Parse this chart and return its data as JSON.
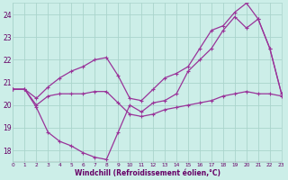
{
  "background_color": "#cceee8",
  "grid_color": "#aad4cc",
  "line_color": "#993399",
  "xlim": [
    0,
    23
  ],
  "ylim": [
    17.5,
    24.5
  ],
  "ytick_vals": [
    18,
    19,
    20,
    21,
    22,
    23,
    24
  ],
  "xtick_vals": [
    0,
    1,
    2,
    3,
    4,
    5,
    6,
    7,
    8,
    9,
    10,
    11,
    12,
    13,
    14,
    15,
    16,
    17,
    18,
    19,
    20,
    21,
    22,
    23
  ],
  "xlabel": "Windchill (Refroidissement éolien,°C)",
  "line1_x": [
    0,
    1,
    2,
    3,
    4,
    5,
    6,
    7,
    8,
    9,
    10,
    11,
    12,
    13,
    14,
    15,
    16,
    17,
    18,
    19,
    20,
    21,
    22,
    23
  ],
  "line1_y": [
    20.7,
    20.7,
    20.0,
    20.4,
    20.5,
    20.5,
    20.5,
    20.6,
    20.6,
    20.1,
    19.6,
    19.5,
    19.6,
    19.8,
    19.9,
    20.0,
    20.1,
    20.2,
    20.4,
    20.5,
    20.6,
    20.5,
    20.5,
    20.4
  ],
  "line2_x": [
    0,
    1,
    2,
    3,
    4,
    5,
    6,
    7,
    8,
    9,
    10,
    11,
    12,
    13,
    14,
    15,
    16,
    17,
    18,
    19,
    20,
    21,
    22,
    23
  ],
  "line2_y": [
    20.7,
    20.7,
    19.9,
    18.8,
    18.4,
    18.2,
    17.9,
    17.7,
    17.6,
    18.8,
    20.0,
    19.7,
    20.1,
    20.2,
    20.5,
    21.5,
    22.0,
    22.5,
    23.3,
    23.9,
    23.4,
    23.8,
    22.5,
    20.5
  ],
  "line3_x": [
    0,
    1,
    2,
    3,
    4,
    5,
    6,
    7,
    8,
    9,
    10,
    11,
    12,
    13,
    14,
    15,
    16,
    17,
    18,
    19,
    20,
    21,
    22,
    23
  ],
  "line3_y": [
    20.7,
    20.7,
    20.3,
    20.8,
    21.2,
    21.5,
    21.7,
    22.0,
    22.1,
    21.3,
    20.3,
    20.2,
    20.7,
    21.2,
    21.4,
    21.7,
    22.5,
    23.3,
    23.5,
    24.1,
    24.5,
    23.8,
    22.5,
    20.5
  ]
}
